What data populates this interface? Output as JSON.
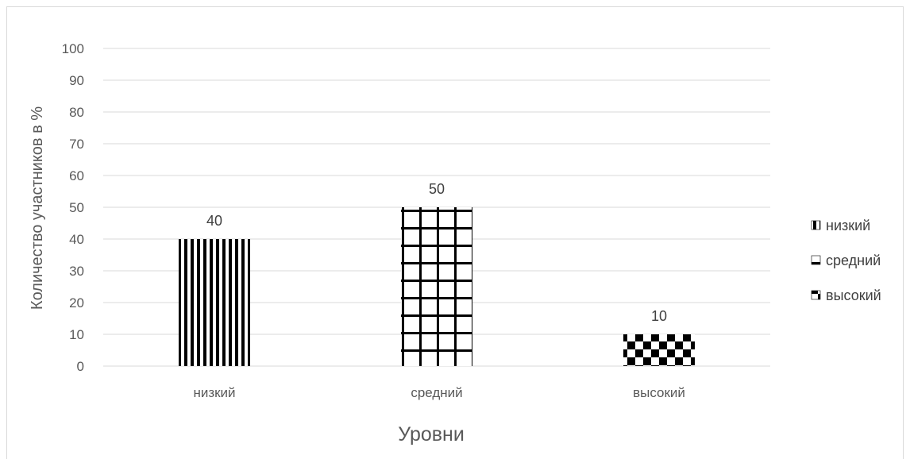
{
  "chart_data": {
    "type": "bar",
    "categories": [
      "низкий",
      "средний",
      "высокий"
    ],
    "values": [
      40,
      50,
      10
    ],
    "data_labels": [
      "40",
      "50",
      "10"
    ],
    "patterns": [
      "vertical-stripes",
      "grid",
      "checkerboard"
    ],
    "title": "",
    "xlabel": "Уровни",
    "ylabel": "Количество участников в %",
    "ylim": [
      0,
      100
    ],
    "yticks": [
      0,
      10,
      20,
      30,
      40,
      50,
      60,
      70,
      80,
      90,
      100
    ],
    "grid": true,
    "legend": {
      "placement": "right",
      "entries": [
        "низкий",
        "средний",
        "высокий"
      ]
    },
    "colors": {
      "bar": "#000000",
      "grid": "#d9d9d9",
      "text": "#595959"
    }
  }
}
